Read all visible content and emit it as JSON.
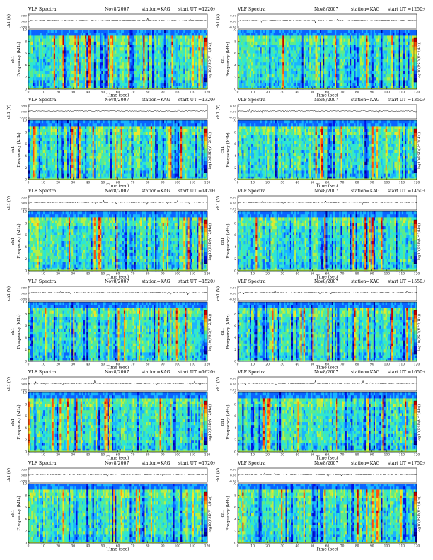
{
  "header_labels": {
    "title": "VLF Spectra",
    "station_prefix": "station=",
    "start_prefix": "start  UT  ="
  },
  "colors": {
    "colormap": [
      "#0000a0",
      "#0014e6",
      "#0a64ff",
      "#19b4ff",
      "#2ee6d2",
      "#5aeb8c",
      "#b4f046",
      "#f0e628",
      "#ff9e14",
      "#ff5008",
      "#c80000"
    ],
    "trace": "#000000",
    "frame": "#000000"
  },
  "chart_data": [
    {
      "type": "heatmap",
      "title": "VLF Spectra",
      "date": "Nov8/2007",
      "station": "KAG",
      "start_ut": "1220:0",
      "trace_label": "ch1 (V)",
      "trace_ticks": [
        "0.50",
        "0.00",
        "-0.50"
      ],
      "ylabel": "Frequency (kHz)",
      "ylabel_prefix": "ch1",
      "y_ticks": [
        "10",
        "8",
        "6",
        "4",
        "2",
        "0"
      ],
      "ylim": [
        0,
        10
      ],
      "xlabel": "Time (sec)",
      "x_ticks": [
        "0",
        "10",
        "20",
        "30",
        "40",
        "50",
        "60",
        "70",
        "80",
        "90",
        "100",
        "110",
        "120"
      ],
      "xlim": [
        0,
        120
      ],
      "colorbar_label": "log10(PSD(V^2/Hz))"
    },
    {
      "type": "heatmap",
      "title": "VLF Spectra",
      "date": "Nov8/2007",
      "station": "KAG",
      "start_ut": "1250:0",
      "trace_label": "ch1 (V)",
      "trace_ticks": [
        "0.50",
        "0.00",
        "-0.50"
      ],
      "ylabel": "Frequency (kHz)",
      "ylabel_prefix": "ch1",
      "y_ticks": [
        "10",
        "8",
        "6",
        "4",
        "2",
        "0"
      ],
      "ylim": [
        0,
        10
      ],
      "xlabel": "Time (sec)",
      "x_ticks": [
        "0",
        "10",
        "20",
        "30",
        "40",
        "50",
        "60",
        "70",
        "80",
        "90",
        "100",
        "110",
        "120"
      ],
      "xlim": [
        0,
        120
      ],
      "colorbar_label": "log10(PSD(V^2/Hz))"
    },
    {
      "type": "heatmap",
      "title": "VLF Spectra",
      "date": "Nov8/2007",
      "station": "KAG",
      "start_ut": "1320:0",
      "trace_label": "ch1 (V)",
      "trace_ticks": [
        "0.50",
        "0.00",
        "-0.50"
      ],
      "ylabel": "Frequency (kHz)",
      "ylabel_prefix": "ch1",
      "y_ticks": [
        "10",
        "8",
        "6",
        "4",
        "2",
        "0"
      ],
      "ylim": [
        0,
        10
      ],
      "xlabel": "Time (sec)",
      "x_ticks": [
        "0",
        "10",
        "20",
        "30",
        "40",
        "50",
        "60",
        "70",
        "80",
        "90",
        "100",
        "110",
        "120"
      ],
      "xlim": [
        0,
        120
      ],
      "colorbar_label": "log10(PSD(V^2/Hz))"
    },
    {
      "type": "heatmap",
      "title": "VLF Spectra",
      "date": "Nov8/2007",
      "station": "KAG",
      "start_ut": "1350:0",
      "trace_label": "ch1 (V)",
      "trace_ticks": [
        "0.50",
        "0.00",
        "-0.50"
      ],
      "ylabel": "Frequency (kHz)",
      "ylabel_prefix": "ch1",
      "y_ticks": [
        "10",
        "8",
        "6",
        "4",
        "2",
        "0"
      ],
      "ylim": [
        0,
        10
      ],
      "xlabel": "Time (sec)",
      "x_ticks": [
        "0",
        "10",
        "20",
        "30",
        "40",
        "50",
        "60",
        "70",
        "80",
        "90",
        "100",
        "110",
        "120"
      ],
      "xlim": [
        0,
        120
      ],
      "colorbar_label": "log10(PSD(V^2/Hz))"
    },
    {
      "type": "heatmap",
      "title": "VLF Spectra",
      "date": "Nov8/2007",
      "station": "KAG",
      "start_ut": "1420:0",
      "trace_label": "ch1 (V)",
      "trace_ticks": [
        "0.50",
        "0.00",
        "-0.50"
      ],
      "ylabel": "Frequency (kHz)",
      "ylabel_prefix": "ch1",
      "y_ticks": [
        "10",
        "8",
        "6",
        "4",
        "2",
        "0"
      ],
      "ylim": [
        0,
        10
      ],
      "xlabel": "Time (sec)",
      "x_ticks": [
        "0",
        "10",
        "20",
        "30",
        "40",
        "50",
        "60",
        "70",
        "80",
        "90",
        "100",
        "110",
        "120"
      ],
      "xlim": [
        0,
        120
      ],
      "colorbar_label": "log10(PSD(V^2/Hz))"
    },
    {
      "type": "heatmap",
      "title": "VLF Spectra",
      "date": "Nov8/2007",
      "station": "KAG",
      "start_ut": "1450:0",
      "trace_label": "ch1 (V)",
      "trace_ticks": [
        "0.50",
        "0.00",
        "-0.50"
      ],
      "ylabel": "Frequency (kHz)",
      "ylabel_prefix": "ch1",
      "y_ticks": [
        "10",
        "8",
        "6",
        "4",
        "2",
        "0"
      ],
      "ylim": [
        0,
        10
      ],
      "xlabel": "Time (sec)",
      "x_ticks": [
        "0",
        "10",
        "20",
        "30",
        "40",
        "50",
        "60",
        "70",
        "80",
        "90",
        "100",
        "110",
        "120"
      ],
      "xlim": [
        0,
        120
      ],
      "colorbar_label": "log10(PSD(V^2/Hz))"
    },
    {
      "type": "heatmap",
      "title": "VLF Spectra",
      "date": "Nov8/2007",
      "station": "KAG",
      "start_ut": "1520:0",
      "trace_label": "ch1 (V)",
      "trace_ticks": [
        "0.50",
        "0.00",
        "-0.50"
      ],
      "ylabel": "Frequency (kHz)",
      "ylabel_prefix": "ch1",
      "y_ticks": [
        "10",
        "8",
        "6",
        "4",
        "2",
        "0"
      ],
      "ylim": [
        0,
        10
      ],
      "xlabel": "Time (sec)",
      "x_ticks": [
        "0",
        "10",
        "20",
        "30",
        "40",
        "50",
        "60",
        "70",
        "80",
        "90",
        "100",
        "110",
        "120"
      ],
      "xlim": [
        0,
        120
      ],
      "colorbar_label": "log10(PSD(V^2/Hz))"
    },
    {
      "type": "heatmap",
      "title": "VLF Spectra",
      "date": "Nov8/2007",
      "station": "KAG",
      "start_ut": "1550:0",
      "trace_label": "ch1 (V)",
      "trace_ticks": [
        "0.50",
        "0.00",
        "-0.50"
      ],
      "ylabel": "Frequency (kHz)",
      "ylabel_prefix": "ch1",
      "y_ticks": [
        "10",
        "8",
        "6",
        "4",
        "2",
        "0"
      ],
      "ylim": [
        0,
        10
      ],
      "xlabel": "Time (sec)",
      "x_ticks": [
        "0",
        "10",
        "20",
        "30",
        "40",
        "50",
        "60",
        "70",
        "80",
        "90",
        "100",
        "110",
        "120"
      ],
      "xlim": [
        0,
        120
      ],
      "colorbar_label": "log10(PSD(V^2/Hz))"
    },
    {
      "type": "heatmap",
      "title": "VLF Spectra",
      "date": "Nov8/2007",
      "station": "KAG",
      "start_ut": "1620:0",
      "trace_label": "ch1 (V)",
      "trace_ticks": [
        "0.50",
        "0.00",
        "-0.50"
      ],
      "ylabel": "Frequency (kHz)",
      "ylabel_prefix": "ch1",
      "y_ticks": [
        "10",
        "8",
        "6",
        "4",
        "2",
        "0"
      ],
      "ylim": [
        0,
        10
      ],
      "xlabel": "Time (sec)",
      "x_ticks": [
        "0",
        "10",
        "20",
        "30",
        "40",
        "50",
        "60",
        "70",
        "80",
        "90",
        "100",
        "110",
        "120"
      ],
      "xlim": [
        0,
        120
      ],
      "colorbar_label": "log10(PSD(V^2/Hz))"
    },
    {
      "type": "heatmap",
      "title": "VLF Spectra",
      "date": "Nov8/2007",
      "station": "KAG",
      "start_ut": "1650:0",
      "trace_label": "ch1 (V)",
      "trace_ticks": [
        "0.50",
        "0.00",
        "-0.50"
      ],
      "ylabel": "Frequency (kHz)",
      "ylabel_prefix": "ch1",
      "y_ticks": [
        "10",
        "8",
        "6",
        "4",
        "2",
        "0"
      ],
      "ylim": [
        0,
        10
      ],
      "xlabel": "Time (sec)",
      "x_ticks": [
        "0",
        "10",
        "20",
        "30",
        "40",
        "50",
        "60",
        "70",
        "80",
        "90",
        "100",
        "110",
        "120"
      ],
      "xlim": [
        0,
        120
      ],
      "colorbar_label": "log10(PSD(V^2/Hz))"
    },
    {
      "type": "heatmap",
      "title": "VLF Spectra",
      "date": "Nov8/2007",
      "station": "KAG",
      "start_ut": "1720:0",
      "trace_label": "ch1 (V)",
      "trace_ticks": [
        "0.50",
        "0.00",
        "-0.50"
      ],
      "ylabel": "Frequency (kHz)",
      "ylabel_prefix": "ch1",
      "y_ticks": [
        "10",
        "8",
        "6",
        "4",
        "2",
        "0"
      ],
      "ylim": [
        0,
        10
      ],
      "xlabel": "Time (sec)",
      "x_ticks": [
        "0",
        "10",
        "20",
        "30",
        "40",
        "50",
        "60",
        "70",
        "80",
        "90",
        "100",
        "110",
        "120"
      ],
      "xlim": [
        0,
        120
      ],
      "colorbar_label": "log10(PSD(V^2/Hz))"
    },
    {
      "type": "heatmap",
      "title": "VLF Spectra",
      "date": "Nov8/2007",
      "station": "KAG",
      "start_ut": "1750:0",
      "trace_label": "ch1 (V)",
      "trace_ticks": [
        "0.50",
        "0.00",
        "-0.50"
      ],
      "ylabel": "Frequency (kHz)",
      "ylabel_prefix": "ch1",
      "y_ticks": [
        "10",
        "8",
        "6",
        "4",
        "2",
        "0"
      ],
      "ylim": [
        0,
        10
      ],
      "xlabel": "Time (sec)",
      "x_ticks": [
        "0",
        "10",
        "20",
        "30",
        "40",
        "50",
        "60",
        "70",
        "80",
        "90",
        "100",
        "110",
        "120"
      ],
      "xlim": [
        0,
        120
      ],
      "colorbar_label": "log10(PSD(V^2/Hz))"
    }
  ]
}
